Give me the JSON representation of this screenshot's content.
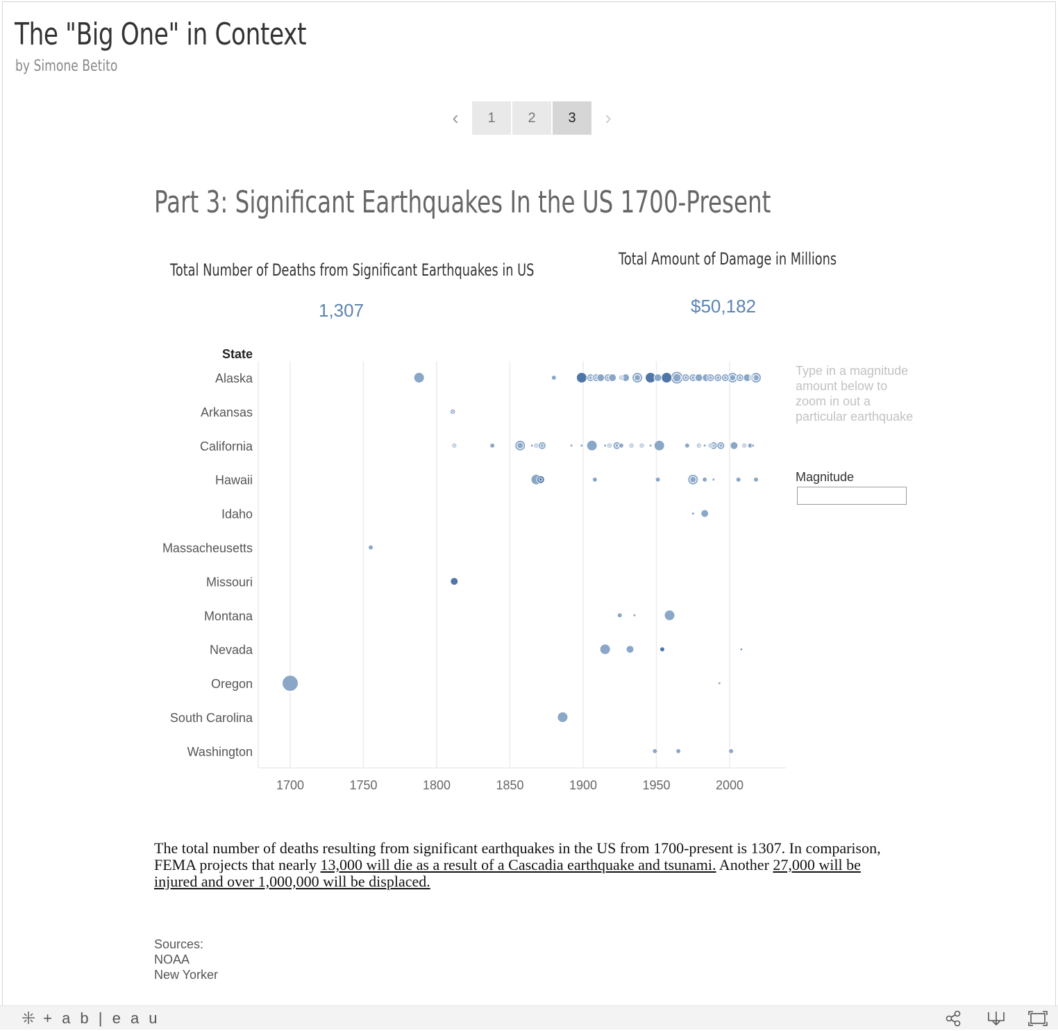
{
  "header": {
    "title": "The \"Big One\" in Context",
    "byline": "by Simone Betito"
  },
  "pager": {
    "prev_icon": "chevron-left-icon",
    "next_icon": "chevron-right-icon",
    "pages": [
      "1",
      "2",
      "3"
    ],
    "active_page": "3"
  },
  "part_title": "Part 3: Significant Earthquakes In the US 1700-Present",
  "kpis": {
    "deaths_label": "Total Number of Deaths from Significant Earthquakes in US",
    "deaths_value": "1,307",
    "damage_label": "Total Amount of Damage in Millions",
    "damage_value": "$50,182"
  },
  "filter": {
    "helper_text": "Type in a magnitude amount below  to zoom in out a particular earthquake",
    "label": "Magnitude",
    "value": ""
  },
  "colors": {
    "mark_light": "#8aa7c8",
    "mark_dark": "#4f76a6",
    "kpi": "#5b84b1",
    "grid": "#ececec"
  },
  "chart_data": {
    "type": "scatter",
    "row_header": "State",
    "xlim": [
      1680,
      2040
    ],
    "x_ticks": [
      1700,
      1750,
      1800,
      1850,
      1900,
      1950,
      2000
    ],
    "grid": true,
    "categories": [
      "Alaska",
      "Arkansas",
      "California",
      "Hawaii",
      "Idaho",
      "Massacheusetts",
      "Missouri",
      "Montana",
      "Nevada",
      "Oregon",
      "South Carolina",
      "Washington"
    ],
    "points": [
      {
        "state": "Alaska",
        "year": 1788,
        "size": 4
      },
      {
        "state": "Alaska",
        "year": 1880,
        "size": 2
      },
      {
        "state": "Alaska",
        "year": 1899,
        "size": 4,
        "dark": true
      },
      {
        "state": "Alaska",
        "year": 1905,
        "size": 3,
        "ring": true
      },
      {
        "state": "Alaska",
        "year": 1909,
        "size": 3,
        "ring": true
      },
      {
        "state": "Alaska",
        "year": 1912,
        "size": 3
      },
      {
        "state": "Alaska",
        "year": 1917,
        "size": 3,
        "ring": true
      },
      {
        "state": "Alaska",
        "year": 1920,
        "size": 3
      },
      {
        "state": "Alaska",
        "year": 1926,
        "size": 2,
        "ring": true
      },
      {
        "state": "Alaska",
        "year": 1929,
        "size": 3
      },
      {
        "state": "Alaska",
        "year": 1937,
        "size": 4,
        "ring": true
      },
      {
        "state": "Alaska",
        "year": 1946,
        "size": 4,
        "dark": true
      },
      {
        "state": "Alaska",
        "year": 1951,
        "size": 3
      },
      {
        "state": "Alaska",
        "year": 1957,
        "size": 4,
        "dark": true
      },
      {
        "state": "Alaska",
        "year": 1964,
        "size": 5,
        "ring": true
      },
      {
        "state": "Alaska",
        "year": 1970,
        "size": 3,
        "ring": true
      },
      {
        "state": "Alaska",
        "year": 1975,
        "size": 3,
        "ring": true
      },
      {
        "state": "Alaska",
        "year": 1979,
        "size": 3
      },
      {
        "state": "Alaska",
        "year": 1984,
        "size": 3
      },
      {
        "state": "Alaska",
        "year": 1987,
        "size": 3,
        "ring": true
      },
      {
        "state": "Alaska",
        "year": 1992,
        "size": 3,
        "ring": true
      },
      {
        "state": "Alaska",
        "year": 1997,
        "size": 3,
        "ring": true
      },
      {
        "state": "Alaska",
        "year": 2002,
        "size": 4,
        "ring": true
      },
      {
        "state": "Alaska",
        "year": 2007,
        "size": 3,
        "ring": true
      },
      {
        "state": "Alaska",
        "year": 2012,
        "size": 3
      },
      {
        "state": "Alaska",
        "year": 2015,
        "size": 2,
        "ring": true
      },
      {
        "state": "Alaska",
        "year": 2018,
        "size": 4,
        "ring": true
      },
      {
        "state": "Arkansas",
        "year": 1811,
        "size": 2,
        "dark": true,
        "ring": true
      },
      {
        "state": "California",
        "year": 1812,
        "size": 2,
        "ring": true
      },
      {
        "state": "California",
        "year": 1838,
        "size": 2
      },
      {
        "state": "California",
        "year": 1857,
        "size": 4,
        "ring": true
      },
      {
        "state": "California",
        "year": 1865,
        "size": 1
      },
      {
        "state": "California",
        "year": 1868,
        "size": 2,
        "ring": true
      },
      {
        "state": "California",
        "year": 1872,
        "size": 3,
        "ring": true
      },
      {
        "state": "California",
        "year": 1892,
        "size": 1
      },
      {
        "state": "California",
        "year": 1899,
        "size": 1,
        "ring": true
      },
      {
        "state": "California",
        "year": 1906,
        "size": 4
      },
      {
        "state": "California",
        "year": 1915,
        "size": 1
      },
      {
        "state": "California",
        "year": 1918,
        "size": 2,
        "ring": true
      },
      {
        "state": "California",
        "year": 1923,
        "size": 3,
        "ring": true
      },
      {
        "state": "California",
        "year": 1926,
        "size": 2
      },
      {
        "state": "California",
        "year": 1933,
        "size": 2,
        "ring": true
      },
      {
        "state": "California",
        "year": 1940,
        "size": 2,
        "ring": true
      },
      {
        "state": "California",
        "year": 1946,
        "size": 1
      },
      {
        "state": "California",
        "year": 1952,
        "size": 4
      },
      {
        "state": "California",
        "year": 1971,
        "size": 2
      },
      {
        "state": "California",
        "year": 1979,
        "size": 2,
        "ring": true
      },
      {
        "state": "California",
        "year": 1983,
        "size": 1,
        "ring": true
      },
      {
        "state": "California",
        "year": 1987,
        "size": 2,
        "ring": true
      },
      {
        "state": "California",
        "year": 1989,
        "size": 3,
        "ring": true
      },
      {
        "state": "California",
        "year": 1994,
        "size": 3,
        "ring": true
      },
      {
        "state": "California",
        "year": 2003,
        "size": 3
      },
      {
        "state": "California",
        "year": 2010,
        "size": 2,
        "ring": true
      },
      {
        "state": "California",
        "year": 2014,
        "size": 2
      },
      {
        "state": "California",
        "year": 2016,
        "size": 1
      },
      {
        "state": "Hawaii",
        "year": 1868,
        "size": 4
      },
      {
        "state": "Hawaii",
        "year": 1871,
        "size": 3,
        "dark": true,
        "ring": true
      },
      {
        "state": "Hawaii",
        "year": 1908,
        "size": 2
      },
      {
        "state": "Hawaii",
        "year": 1951,
        "size": 2
      },
      {
        "state": "Hawaii",
        "year": 1975,
        "size": 4,
        "ring": true
      },
      {
        "state": "Hawaii",
        "year": 1983,
        "size": 2
      },
      {
        "state": "Hawaii",
        "year": 1989,
        "size": 1
      },
      {
        "state": "Hawaii",
        "year": 2006,
        "size": 2
      },
      {
        "state": "Hawaii",
        "year": 2018,
        "size": 2
      },
      {
        "state": "Idaho",
        "year": 1975,
        "size": 1
      },
      {
        "state": "Idaho",
        "year": 1983,
        "size": 3
      },
      {
        "state": "Massacheusetts",
        "year": 1755,
        "size": 2
      },
      {
        "state": "Missouri",
        "year": 1812,
        "size": 3,
        "dark": true
      },
      {
        "state": "Montana",
        "year": 1925,
        "size": 2
      },
      {
        "state": "Montana",
        "year": 1935,
        "size": 1
      },
      {
        "state": "Montana",
        "year": 1959,
        "size": 4
      },
      {
        "state": "Nevada",
        "year": 1915,
        "size": 4
      },
      {
        "state": "Nevada",
        "year": 1932,
        "size": 3
      },
      {
        "state": "Nevada",
        "year": 1954,
        "size": 2,
        "dark": true
      },
      {
        "state": "Nevada",
        "year": 2008,
        "size": 1
      },
      {
        "state": "Oregon",
        "year": 1700,
        "size": 6
      },
      {
        "state": "Oregon",
        "year": 1993,
        "size": 1
      },
      {
        "state": "South Carolina",
        "year": 1886,
        "size": 4
      },
      {
        "state": "Washington",
        "year": 1949,
        "size": 2
      },
      {
        "state": "Washington",
        "year": 1965,
        "size": 2
      },
      {
        "state": "Washington",
        "year": 2001,
        "size": 2
      }
    ]
  },
  "paragraph": {
    "part1": "The total number of deaths resulting from significant earthquakes in the US from 1700-present is 1307. In comparison, FEMA projects that nearly ",
    "link1": "13,000 will die as a result of a Cascadia earthquake and tsunami.",
    "part2": " Another ",
    "link2": "27,000 will be injured and over 1,000,000 will be displaced. "
  },
  "sources": {
    "heading": "Sources:",
    "items": [
      "NOAA",
      "New Yorker"
    ]
  },
  "footer": {
    "logo_text": "+ a b | e a u",
    "icons": [
      "share-icon",
      "download-icon",
      "fullscreen-icon"
    ]
  }
}
